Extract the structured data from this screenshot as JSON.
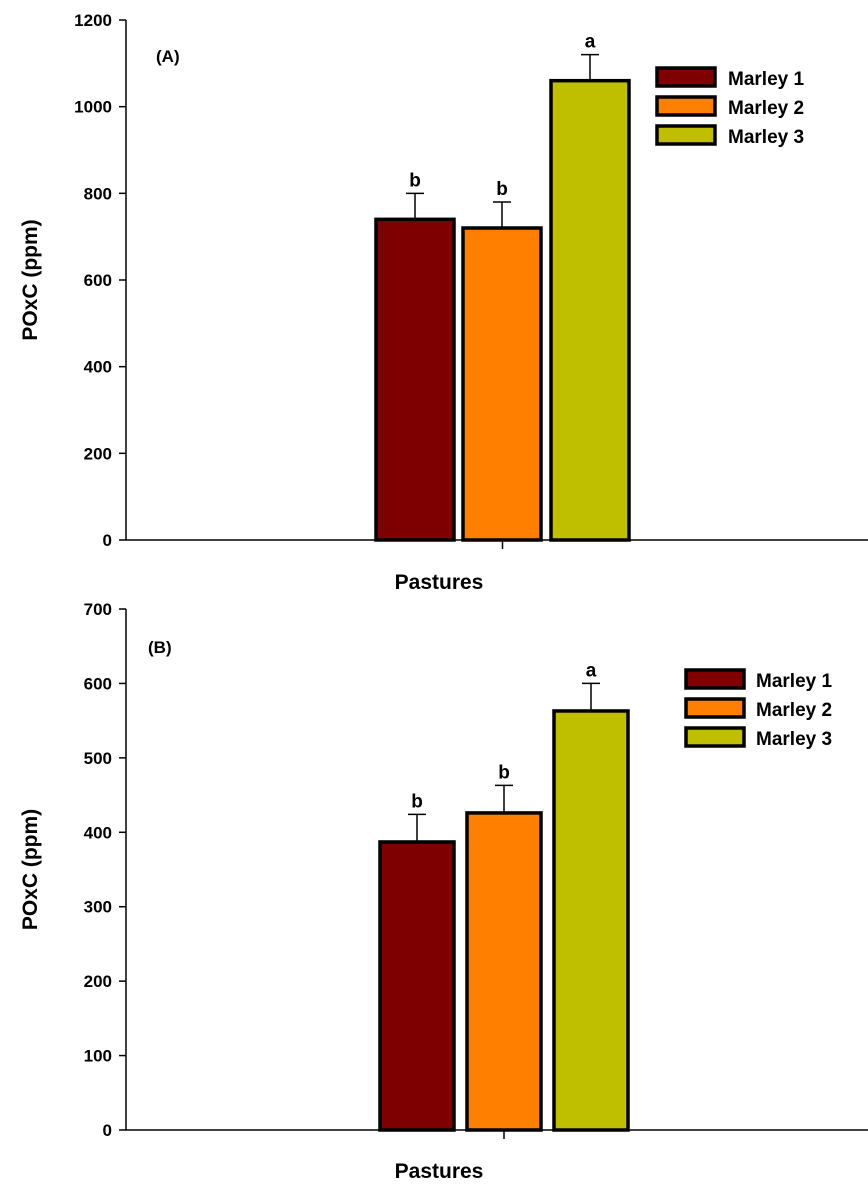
{
  "chart_data": [
    {
      "type": "bar",
      "panel_label": "(A)",
      "xlabel": "Pastures",
      "ylabel": "POxC (ppm)",
      "ylim": [
        0,
        1200
      ],
      "yticks": [
        "0",
        "200",
        "400",
        "600",
        "800",
        "1000",
        "1200"
      ],
      "legend_position": "top-right",
      "series": [
        {
          "name": "Marley 1",
          "value": 740,
          "error": 60,
          "letter": "b",
          "color": "#7f0000"
        },
        {
          "name": "Marley 2",
          "value": 720,
          "error": 60,
          "letter": "b",
          "color": "#ff8000"
        },
        {
          "name": "Marley 3",
          "value": 1060,
          "error": 60,
          "letter": "a",
          "color": "#bfbf00"
        }
      ]
    },
    {
      "type": "bar",
      "panel_label": "(B)",
      "xlabel": "Pastures",
      "ylabel": "POxC (ppm)",
      "ylim": [
        0,
        700
      ],
      "yticks": [
        "0",
        "100",
        "200",
        "300",
        "400",
        "500",
        "600",
        "700"
      ],
      "legend_position": "top-right",
      "series": [
        {
          "name": "Marley 1",
          "value": 387,
          "error": 37,
          "letter": "b",
          "color": "#7f0000"
        },
        {
          "name": "Marley 2",
          "value": 426,
          "error": 37,
          "letter": "b",
          "color": "#ff8000"
        },
        {
          "name": "Marley 3",
          "value": 563,
          "error": 37,
          "letter": "a",
          "color": "#bfbf00"
        }
      ]
    }
  ]
}
